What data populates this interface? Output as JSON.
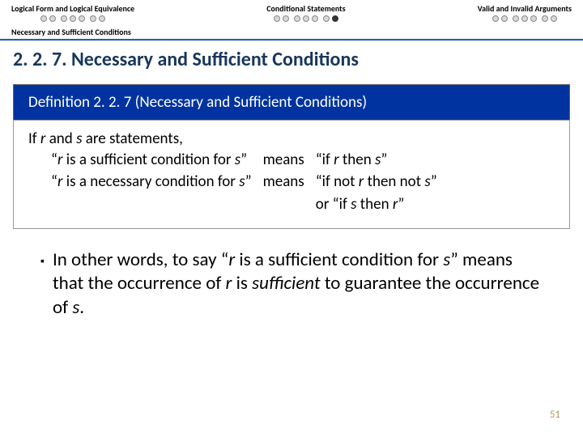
{
  "nav": {
    "item1": {
      "label": "Logical Form and Logical Equivalence",
      "dots": [
        0,
        0,
        0,
        0,
        0,
        0,
        0
      ],
      "gapAfter": [
        1,
        4
      ]
    },
    "item2": {
      "label": "Conditional Statements",
      "dots": [
        0,
        0,
        0,
        0,
        0,
        0,
        1
      ],
      "gapAfter": [
        1,
        4
      ]
    },
    "item3": {
      "label": "Valid and Invalid Arguments",
      "dots": [
        0,
        0,
        0,
        0,
        0,
        0,
        0
      ],
      "gapAfter": [
        1,
        4
      ]
    }
  },
  "subnav": "Necessary and Sufficient Conditions",
  "sectionTitle": "2. 2. 7. Necessary and Sufficient Conditions",
  "defHeader": "Definition 2. 2. 7 (Necessary and Sufficient Conditions)",
  "defIntro_pre": "If ",
  "defIntro_r": "r",
  "defIntro_mid": " and ",
  "defIntro_s": "s",
  "defIntro_post": " are statements,",
  "row1": {
    "q1": "“",
    "r": "r",
    "t1": " is a sufficient condition for ",
    "s": "s",
    "q2": "”",
    "means": "means",
    "rq1": "“if ",
    "rr": "r",
    "rmid": " then ",
    "rs": "s",
    "rq2": "”"
  },
  "row2": {
    "q1": "“",
    "r": "r",
    "t1": " is a necessary condition for ",
    "s": "s",
    "q2": "”",
    "means": "means",
    "rq1": "“if not ",
    "rr": "r",
    "rmid": " then not ",
    "rs": "s",
    "rq2": "”"
  },
  "row3": {
    "pre": "or “if ",
    "s": "s",
    "mid": " then ",
    "r": "r",
    "post": "”"
  },
  "bullet": {
    "t1": "In other words, to say “",
    "r1": "r",
    "t2": " is a sufficient condition for ",
    "s1": "s",
    "t3": "” means that the occurrence of ",
    "r2": "r",
    "t4": " is ",
    "suff": "sufficient",
    "t5": " to guarantee the occurrence of ",
    "s2": "s",
    "t6": "."
  },
  "pageNum": "51"
}
